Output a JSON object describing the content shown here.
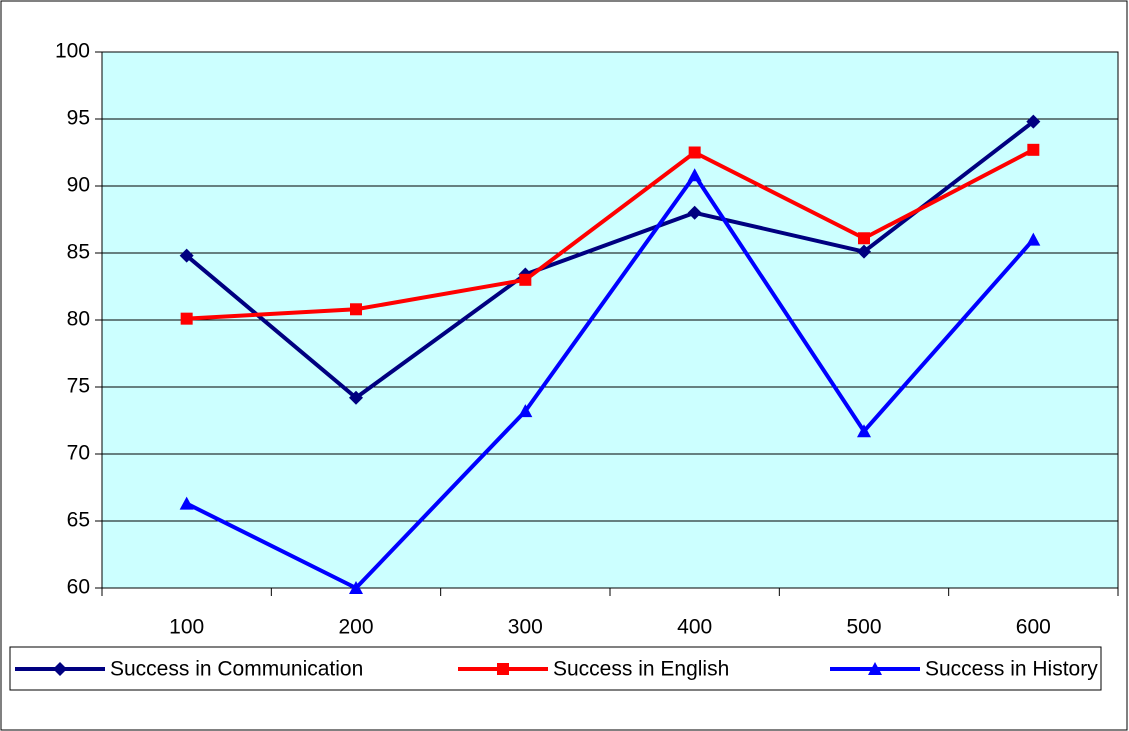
{
  "chart_data": {
    "type": "line",
    "categories": [
      "100",
      "200",
      "300",
      "400",
      "500",
      "600"
    ],
    "series": [
      {
        "name": "Success in Communication",
        "color": "#000080",
        "marker": "diamond",
        "values": [
          84.8,
          74.2,
          83.4,
          88.0,
          85.1,
          94.8
        ]
      },
      {
        "name": "Success in English",
        "color": "#ff0000",
        "marker": "square",
        "values": [
          80.1,
          80.8,
          83.0,
          92.5,
          86.1,
          92.7
        ]
      },
      {
        "name": "Success in History",
        "color": "#0000ff",
        "marker": "triangle",
        "values": [
          66.3,
          60.0,
          73.2,
          90.8,
          71.7,
          86.0
        ]
      }
    ],
    "ylim": [
      60,
      100
    ],
    "yticks": [
      60,
      65,
      70,
      75,
      80,
      85,
      90,
      95,
      100
    ],
    "grid": true,
    "legend": "bottom",
    "plot_background": "#ccffff"
  }
}
